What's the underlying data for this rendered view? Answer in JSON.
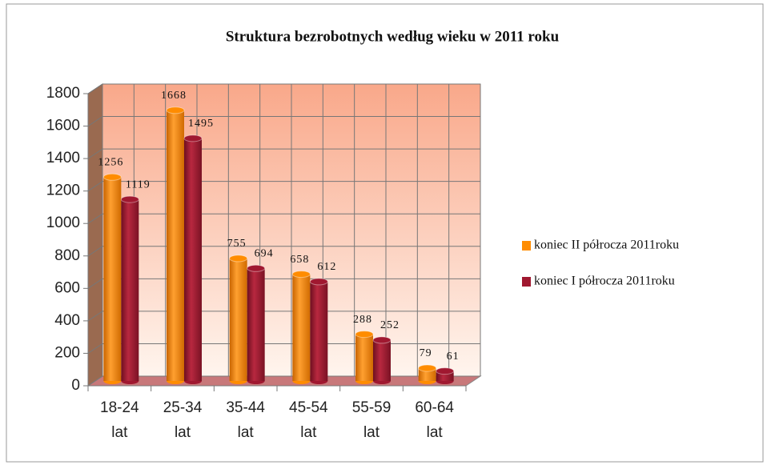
{
  "chart_data": {
    "type": "bar",
    "title": "Struktura bezrobotnych według wieku w 2011 roku",
    "categories": [
      "18-24 lat",
      "25-34 lat",
      "35-44 lat",
      "45-54 lat",
      "55-59 lat",
      "60-64 lat"
    ],
    "series": [
      {
        "name": "koniec II półrocza 2011roku",
        "color": "#ff8c00",
        "values": [
          1256,
          1668,
          755,
          658,
          288,
          79
        ]
      },
      {
        "name": "koniec I półrocza 2011roku",
        "color": "#a01830",
        "values": [
          1119,
          1495,
          694,
          612,
          252,
          61
        ]
      }
    ],
    "ylim": [
      0,
      1800
    ],
    "yticks": [
      0,
      200,
      400,
      600,
      800,
      1000,
      1200,
      1400,
      1600,
      1800
    ],
    "grid": true,
    "legend": "right"
  }
}
